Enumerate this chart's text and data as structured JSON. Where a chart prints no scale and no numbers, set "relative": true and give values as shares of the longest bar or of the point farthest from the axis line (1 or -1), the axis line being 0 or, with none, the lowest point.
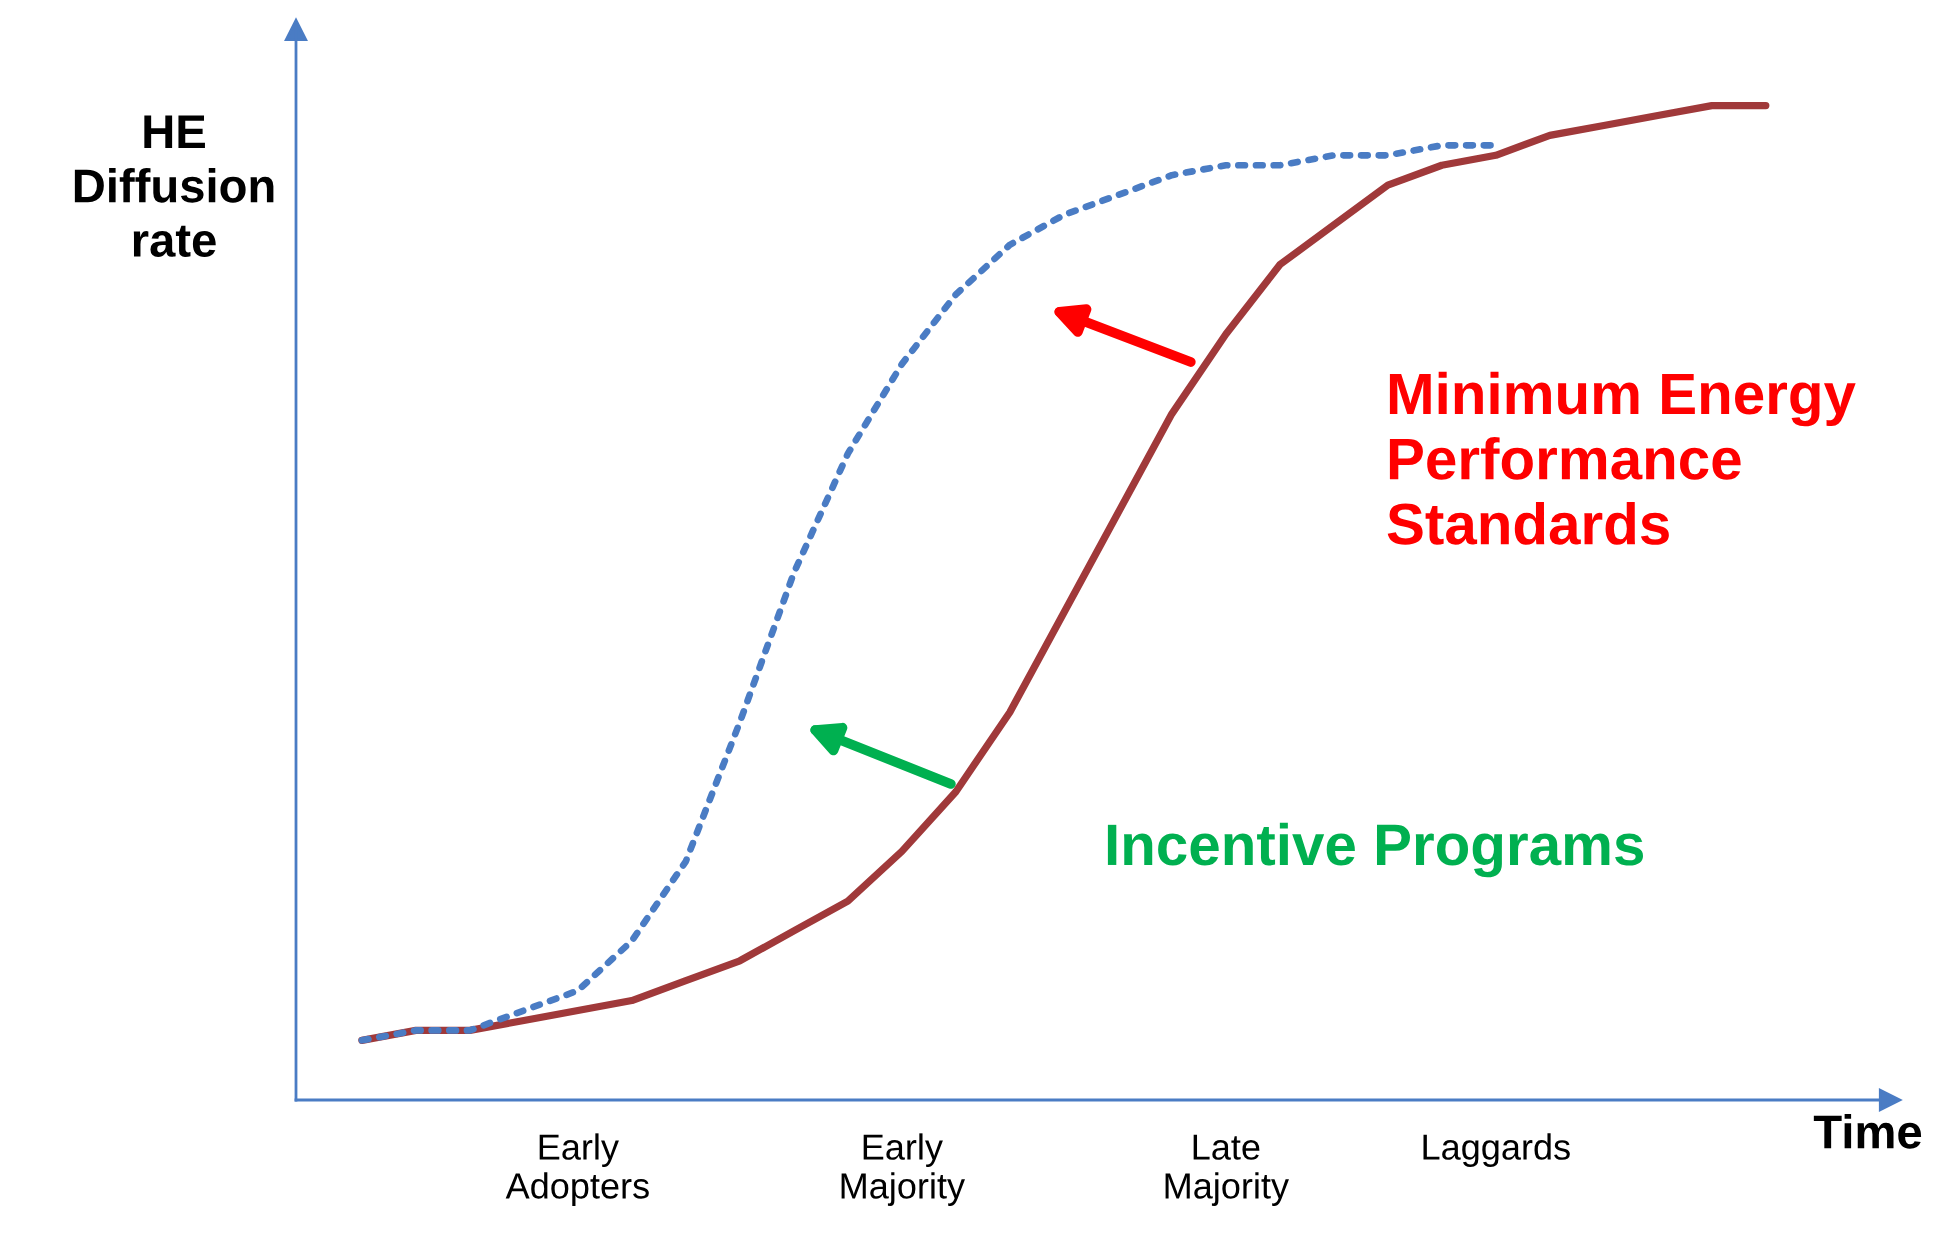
{
  "chart_data": {
    "type": "line",
    "relative": true,
    "ylabel": "HE\nDiffusion\nrate",
    "xlabel": "Time",
    "categories": [
      null,
      null,
      null,
      null,
      "Early\nAdopters",
      null,
      null,
      null,
      null,
      null,
      "Early\nMajority",
      null,
      null,
      null,
      null,
      null,
      "Late\nMajority",
      null,
      null,
      null,
      null,
      "Laggards",
      null,
      null,
      null,
      null,
      null
    ],
    "series": [
      {
        "color": "#a0393a",
        "line_style": "solid",
        "values": [
          0.06,
          0.07,
          0.07,
          0.08,
          0.09,
          0.1,
          0.12,
          0.14,
          0.17,
          0.2,
          0.25,
          0.31,
          0.39,
          0.49,
          0.59,
          0.69,
          0.77,
          0.84,
          0.88,
          0.92,
          0.94,
          0.95,
          0.97,
          0.98,
          0.99,
          1.0,
          1.0
        ]
      },
      {
        "color": "#4a7cc4",
        "line_style": "dotted",
        "values": [
          0.06,
          0.07,
          0.07,
          0.09,
          0.11,
          0.16,
          0.24,
          0.38,
          0.53,
          0.65,
          0.74,
          0.81,
          0.86,
          0.89,
          0.91,
          0.93,
          0.94,
          0.94,
          0.95,
          0.95,
          0.96,
          0.96,
          null,
          null,
          null,
          null,
          null
        ]
      }
    ],
    "annotations": [
      "Minimum Energy\nPerformance\nStandards",
      "Incentive Programs"
    ],
    "grid": false,
    "legend": false
  }
}
